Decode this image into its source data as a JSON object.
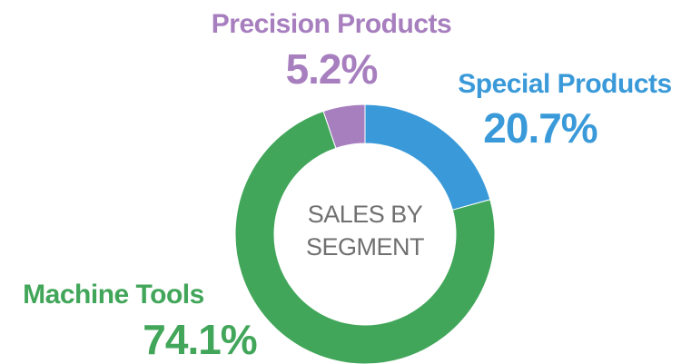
{
  "chart_data": {
    "type": "donut",
    "title": "SALES BY SEGMENT",
    "categories": [
      "Special Products",
      "Machine Tools",
      "Precision Products"
    ],
    "values": [
      20.7,
      74.1,
      5.2
    ],
    "value_labels": [
      "20.7%",
      "74.1%",
      "5.2%"
    ],
    "colors": [
      "#3a9ad9",
      "#42a65a",
      "#a77fbf"
    ]
  }
}
